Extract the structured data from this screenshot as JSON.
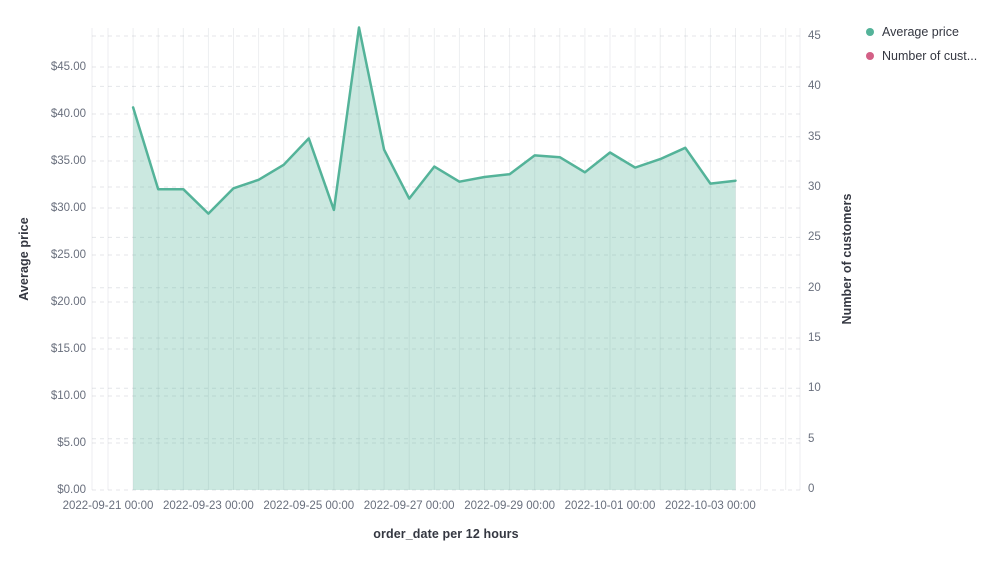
{
  "chart_data": {
    "type": "area",
    "title": "",
    "x_axis": {
      "title": "order_date per 12 hours",
      "tick_labels": [
        "2022-09-21 00:00",
        "2022-09-23 00:00",
        "2022-09-25 00:00",
        "2022-09-27 00:00",
        "2022-09-29 00:00",
        "2022-10-01 00:00",
        "2022-10-03 00:00"
      ]
    },
    "left_axis": {
      "title": "Average price",
      "tick_labels": [
        "$0.00",
        "$5.00",
        "$10.00",
        "$15.00",
        "$20.00",
        "$25.00",
        "$30.00",
        "$35.00",
        "$40.00",
        "$45.00"
      ],
      "range": [
        0,
        49.3
      ],
      "grid": true
    },
    "right_axis": {
      "title": "Number of customers",
      "tick_labels": [
        "0",
        "5",
        "10",
        "15",
        "20",
        "25",
        "30",
        "35",
        "40",
        "45"
      ],
      "range": [
        0,
        45.9
      ],
      "grid": true
    },
    "legend": [
      {
        "label": "Average price",
        "color": "#54b399"
      },
      {
        "label": "Number of cust...",
        "color": "#d36086"
      }
    ],
    "legend_position": "top-right",
    "series": [
      {
        "name": "Average price",
        "axis": "left",
        "color": "#54b399",
        "fill_opacity": 0.3,
        "x": [
          "2022-09-21 12:00",
          "2022-09-22 00:00",
          "2022-09-22 12:00",
          "2022-09-23 00:00",
          "2022-09-23 12:00",
          "2022-09-24 00:00",
          "2022-09-24 12:00",
          "2022-09-25 00:00",
          "2022-09-25 12:00",
          "2022-09-26 00:00",
          "2022-09-26 12:00",
          "2022-09-27 00:00",
          "2022-09-27 12:00",
          "2022-09-28 00:00",
          "2022-09-28 12:00",
          "2022-09-29 00:00",
          "2022-09-29 12:00",
          "2022-09-30 00:00",
          "2022-09-30 12:00",
          "2022-10-01 00:00",
          "2022-10-01 12:00",
          "2022-10-02 00:00",
          "2022-10-02 12:00",
          "2022-10-03 00:00",
          "2022-10-03 12:00"
        ],
        "values": [
          40.7,
          32.0,
          32.0,
          29.4,
          32.1,
          33.0,
          34.6,
          37.4,
          29.8,
          49.2,
          36.2,
          31.0,
          34.4,
          32.8,
          33.3,
          33.6,
          35.6,
          35.4,
          33.8,
          35.9,
          34.3,
          35.2,
          36.4,
          32.6,
          32.9
        ]
      }
    ]
  }
}
